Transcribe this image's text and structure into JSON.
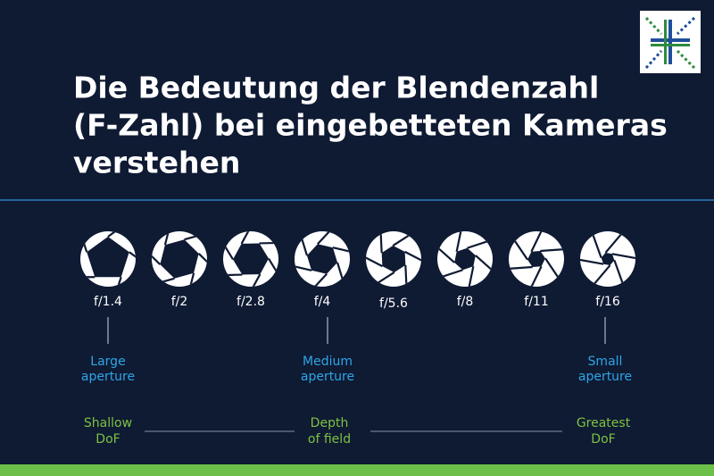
{
  "header": {
    "title_lines": [
      "Die Bedeutung der Blendenzahl",
      "(F-Zahl) bei eingebetteten Kameras",
      "verstehen"
    ]
  },
  "apertures": [
    {
      "label": "f/1.4"
    },
    {
      "label": "f/2"
    },
    {
      "label": "f/2.8"
    },
    {
      "label": "f/4"
    },
    {
      "label": "f/5.6"
    },
    {
      "label": "f/8"
    },
    {
      "label": "f/11"
    },
    {
      "label": "f/16"
    }
  ],
  "size_labels": [
    {
      "lines": [
        "Large",
        "aperture"
      ]
    },
    {
      "lines": [
        "Medium",
        "aperture"
      ]
    },
    {
      "lines": [
        "Small",
        "aperture"
      ]
    }
  ],
  "dof_labels": [
    {
      "lines": [
        "Shallow",
        "DoF"
      ]
    },
    {
      "lines": [
        "Depth",
        "of field"
      ]
    },
    {
      "lines": [
        "Greatest",
        "DoF"
      ]
    }
  ]
}
